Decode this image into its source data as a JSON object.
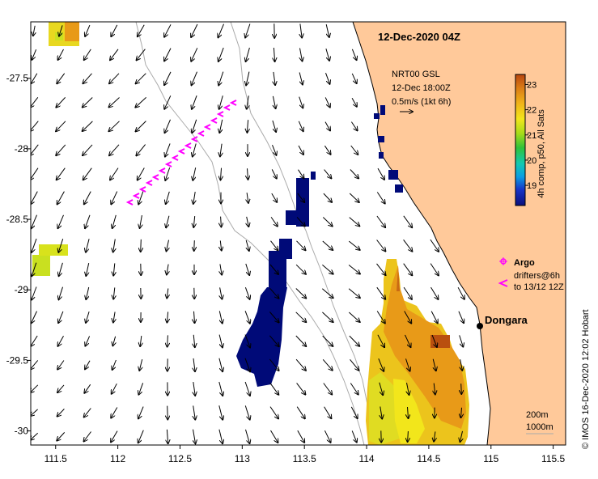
{
  "map": {
    "title": "12-Dec-2020 04Z",
    "x_axis": {
      "range": [
        111.3,
        115.6
      ],
      "ticks": [
        111.5,
        112,
        112.5,
        113,
        113.5,
        114,
        114.5,
        115,
        115.5
      ],
      "tick_labels": [
        "111.5",
        "112",
        "112.5",
        "113",
        "113.5",
        "114",
        "114.5",
        "115",
        "115.5"
      ]
    },
    "y_axis": {
      "range": [
        -30.1,
        -27.1
      ],
      "ticks": [
        -27.5,
        -28,
        -28.5,
        -29,
        -29.5,
        -30
      ],
      "tick_labels": [
        "-27.5",
        "-28",
        "-28.5",
        "-29",
        "-29.5",
        "-30"
      ]
    },
    "current_info": {
      "line1": "NRT00 GSL",
      "line2": "12-Dec 18:00Z",
      "line3": "0.5m/s (1kt 6h)"
    },
    "colorbar": {
      "label": "4h comp, p50, All Sats",
      "ticks": [
        19,
        20,
        21,
        22,
        23
      ],
      "tick_labels": [
        "19",
        "20",
        "21",
        "22",
        "23"
      ],
      "range": [
        18.2,
        23.4
      ]
    },
    "legend": {
      "argo_label": "Argo",
      "drifters_line1": "drifters@6h",
      "drifters_line2": "to 13/12 12Z",
      "symbol_color": "#ff00ff"
    },
    "place": {
      "name": "Dongara",
      "lon": 114.93,
      "lat": -29.25
    },
    "contours": {
      "line1": "200m",
      "line2": "1000m"
    },
    "credit": "© IMOS 16-Dec-2020 12:02 Hobart",
    "colors": {
      "land": "#ffc99a",
      "cold_sst": "#000a78",
      "drifter": "#ff00ff",
      "bathymetry": "#aaaaaa"
    }
  }
}
